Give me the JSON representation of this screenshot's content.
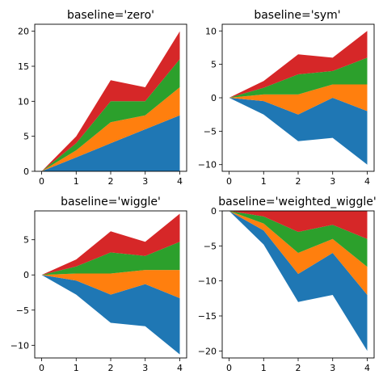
{
  "chart_data": [
    {
      "type": "area",
      "title": "baseline='zero'",
      "x": [
        0,
        1,
        2,
        3,
        4
      ],
      "xticks": [
        0,
        1,
        2,
        3,
        4
      ],
      "yticks": [
        0,
        5,
        10,
        15,
        20
      ],
      "ylim": [
        0,
        21
      ],
      "layers": [
        {
          "color": "#1f77b4",
          "lower": [
            0,
            0,
            0,
            0,
            0
          ],
          "upper": [
            0,
            2,
            4,
            6,
            8
          ]
        },
        {
          "color": "#ff7f0e",
          "lower": [
            0,
            2,
            4,
            6,
            8
          ],
          "upper": [
            0,
            3,
            7,
            8,
            12
          ]
        },
        {
          "color": "#2ca02c",
          "lower": [
            0,
            3,
            7,
            8,
            12
          ],
          "upper": [
            0,
            4,
            10,
            10,
            16
          ]
        },
        {
          "color": "#d62728",
          "lower": [
            0,
            4,
            10,
            10,
            16
          ],
          "upper": [
            0,
            5,
            13,
            12,
            20
          ]
        }
      ]
    },
    {
      "type": "area",
      "title": "baseline='sym'",
      "x": [
        0,
        1,
        2,
        3,
        4
      ],
      "xticks": [
        0,
        1,
        2,
        3,
        4
      ],
      "yticks": [
        -10,
        -5,
        0,
        5,
        10
      ],
      "ylim": [
        -11,
        11
      ],
      "layers": [
        {
          "color": "#1f77b4",
          "lower": [
            0,
            -2.5,
            -6.5,
            -6,
            -10
          ],
          "upper": [
            0,
            -0.5,
            -2.5,
            0,
            -2
          ]
        },
        {
          "color": "#ff7f0e",
          "lower": [
            0,
            -0.5,
            -2.5,
            0,
            -2
          ],
          "upper": [
            0,
            0.5,
            0.5,
            2,
            2
          ]
        },
        {
          "color": "#2ca02c",
          "lower": [
            0,
            0.5,
            0.5,
            2,
            2
          ],
          "upper": [
            0,
            1.5,
            3.5,
            4,
            6
          ]
        },
        {
          "color": "#d62728",
          "lower": [
            0,
            1.5,
            3.5,
            4,
            6
          ],
          "upper": [
            0,
            2.5,
            6.5,
            6,
            10
          ]
        }
      ]
    },
    {
      "type": "area",
      "title": "baseline='wiggle'",
      "x": [
        0,
        1,
        2,
        3,
        4
      ],
      "xticks": [
        0,
        1,
        2,
        3,
        4
      ],
      "yticks": [
        -10,
        -5,
        0,
        5
      ],
      "ylim": [
        -11.8,
        9.1
      ],
      "layers": [
        {
          "color": "#1f77b4",
          "lower": [
            0,
            -2.8,
            -6.8,
            -7.3,
            -11.3
          ],
          "upper": [
            0,
            -0.8,
            -2.8,
            -1.3,
            -3.3
          ]
        },
        {
          "color": "#ff7f0e",
          "lower": [
            0,
            -0.8,
            -2.8,
            -1.3,
            -3.3
          ],
          "upper": [
            0,
            0.2,
            0.2,
            0.7,
            0.7
          ]
        },
        {
          "color": "#2ca02c",
          "lower": [
            0,
            0.2,
            0.2,
            0.7,
            0.7
          ],
          "upper": [
            0,
            1.2,
            3.2,
            2.7,
            4.7
          ]
        },
        {
          "color": "#d62728",
          "lower": [
            0,
            1.2,
            3.2,
            2.7,
            4.7
          ],
          "upper": [
            0,
            2.2,
            6.2,
            4.7,
            8.7
          ]
        }
      ]
    },
    {
      "type": "area",
      "title": "baseline='weighted_wiggle'",
      "x": [
        0,
        1,
        2,
        3,
        4
      ],
      "xticks": [
        0,
        1,
        2,
        3,
        4
      ],
      "yticks": [
        -20,
        -15,
        -10,
        -5,
        0
      ],
      "ylim": [
        -21,
        0
      ],
      "layers": [
        {
          "color": "#1f77b4",
          "lower": [
            0,
            -4.8,
            -13,
            -12,
            -20
          ],
          "upper": [
            0,
            -2.8,
            -9,
            -6,
            -12
          ]
        },
        {
          "color": "#ff7f0e",
          "lower": [
            0,
            -2.8,
            -9,
            -6,
            -12
          ],
          "upper": [
            0,
            -1.8,
            -6,
            -4,
            -8
          ]
        },
        {
          "color": "#2ca02c",
          "lower": [
            0,
            -1.8,
            -6,
            -4,
            -8
          ],
          "upper": [
            0,
            -0.8,
            -3,
            -2,
            -4
          ]
        },
        {
          "color": "#d62728",
          "lower": [
            0,
            -0.8,
            -3,
            -2,
            -4
          ],
          "upper": [
            0,
            0.2,
            0,
            0,
            0
          ]
        }
      ]
    }
  ]
}
